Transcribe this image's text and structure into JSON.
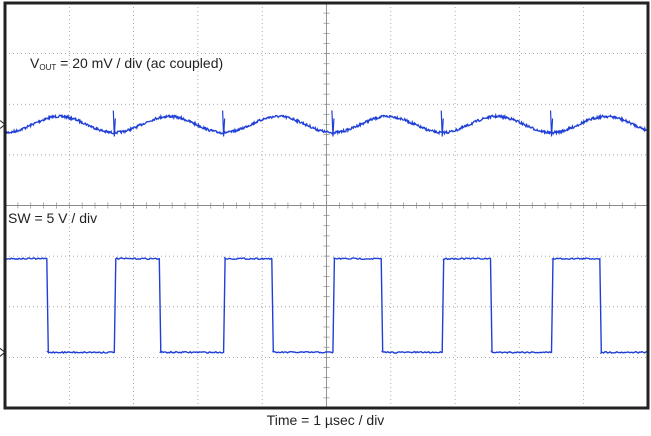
{
  "chart_data": {
    "type": "line",
    "instrument": "oscilloscope",
    "x_unit": "div",
    "xlim": [
      0,
      10
    ],
    "ylim": [
      0,
      8
    ],
    "horizontal_divisions": 10,
    "vertical_divisions": 8,
    "grid": true,
    "xlabel": "Time = 1 µsec / div",
    "colors": {
      "trace": "#1f3fd6",
      "grid": "#8a8a8a",
      "frame": "#222222"
    },
    "channels": [
      {
        "label_main": "V",
        "label_sub": "OUT",
        "label_rest": " = 20 mV / div (ac coupled)",
        "ground_marker_div": 2.4,
        "waveform": "ripple",
        "baseline_div": 2.4,
        "amplitude_div": 0.16,
        "period_div": 1.7,
        "switch_edges_div": [
          1.7,
          3.4,
          5.1,
          6.8,
          8.5,
          10.2
        ]
      },
      {
        "label": "SW = 5 V / div",
        "ground_marker_div": 6.9,
        "waveform": "square",
        "high_level_div": 5.05,
        "low_level_div": 6.9,
        "rising_edges_div": [
          1.7,
          3.4,
          5.1,
          6.8,
          8.5
        ],
        "falling_edges_div": [
          0.65,
          2.4,
          4.15,
          5.85,
          7.55,
          9.25
        ]
      }
    ]
  }
}
